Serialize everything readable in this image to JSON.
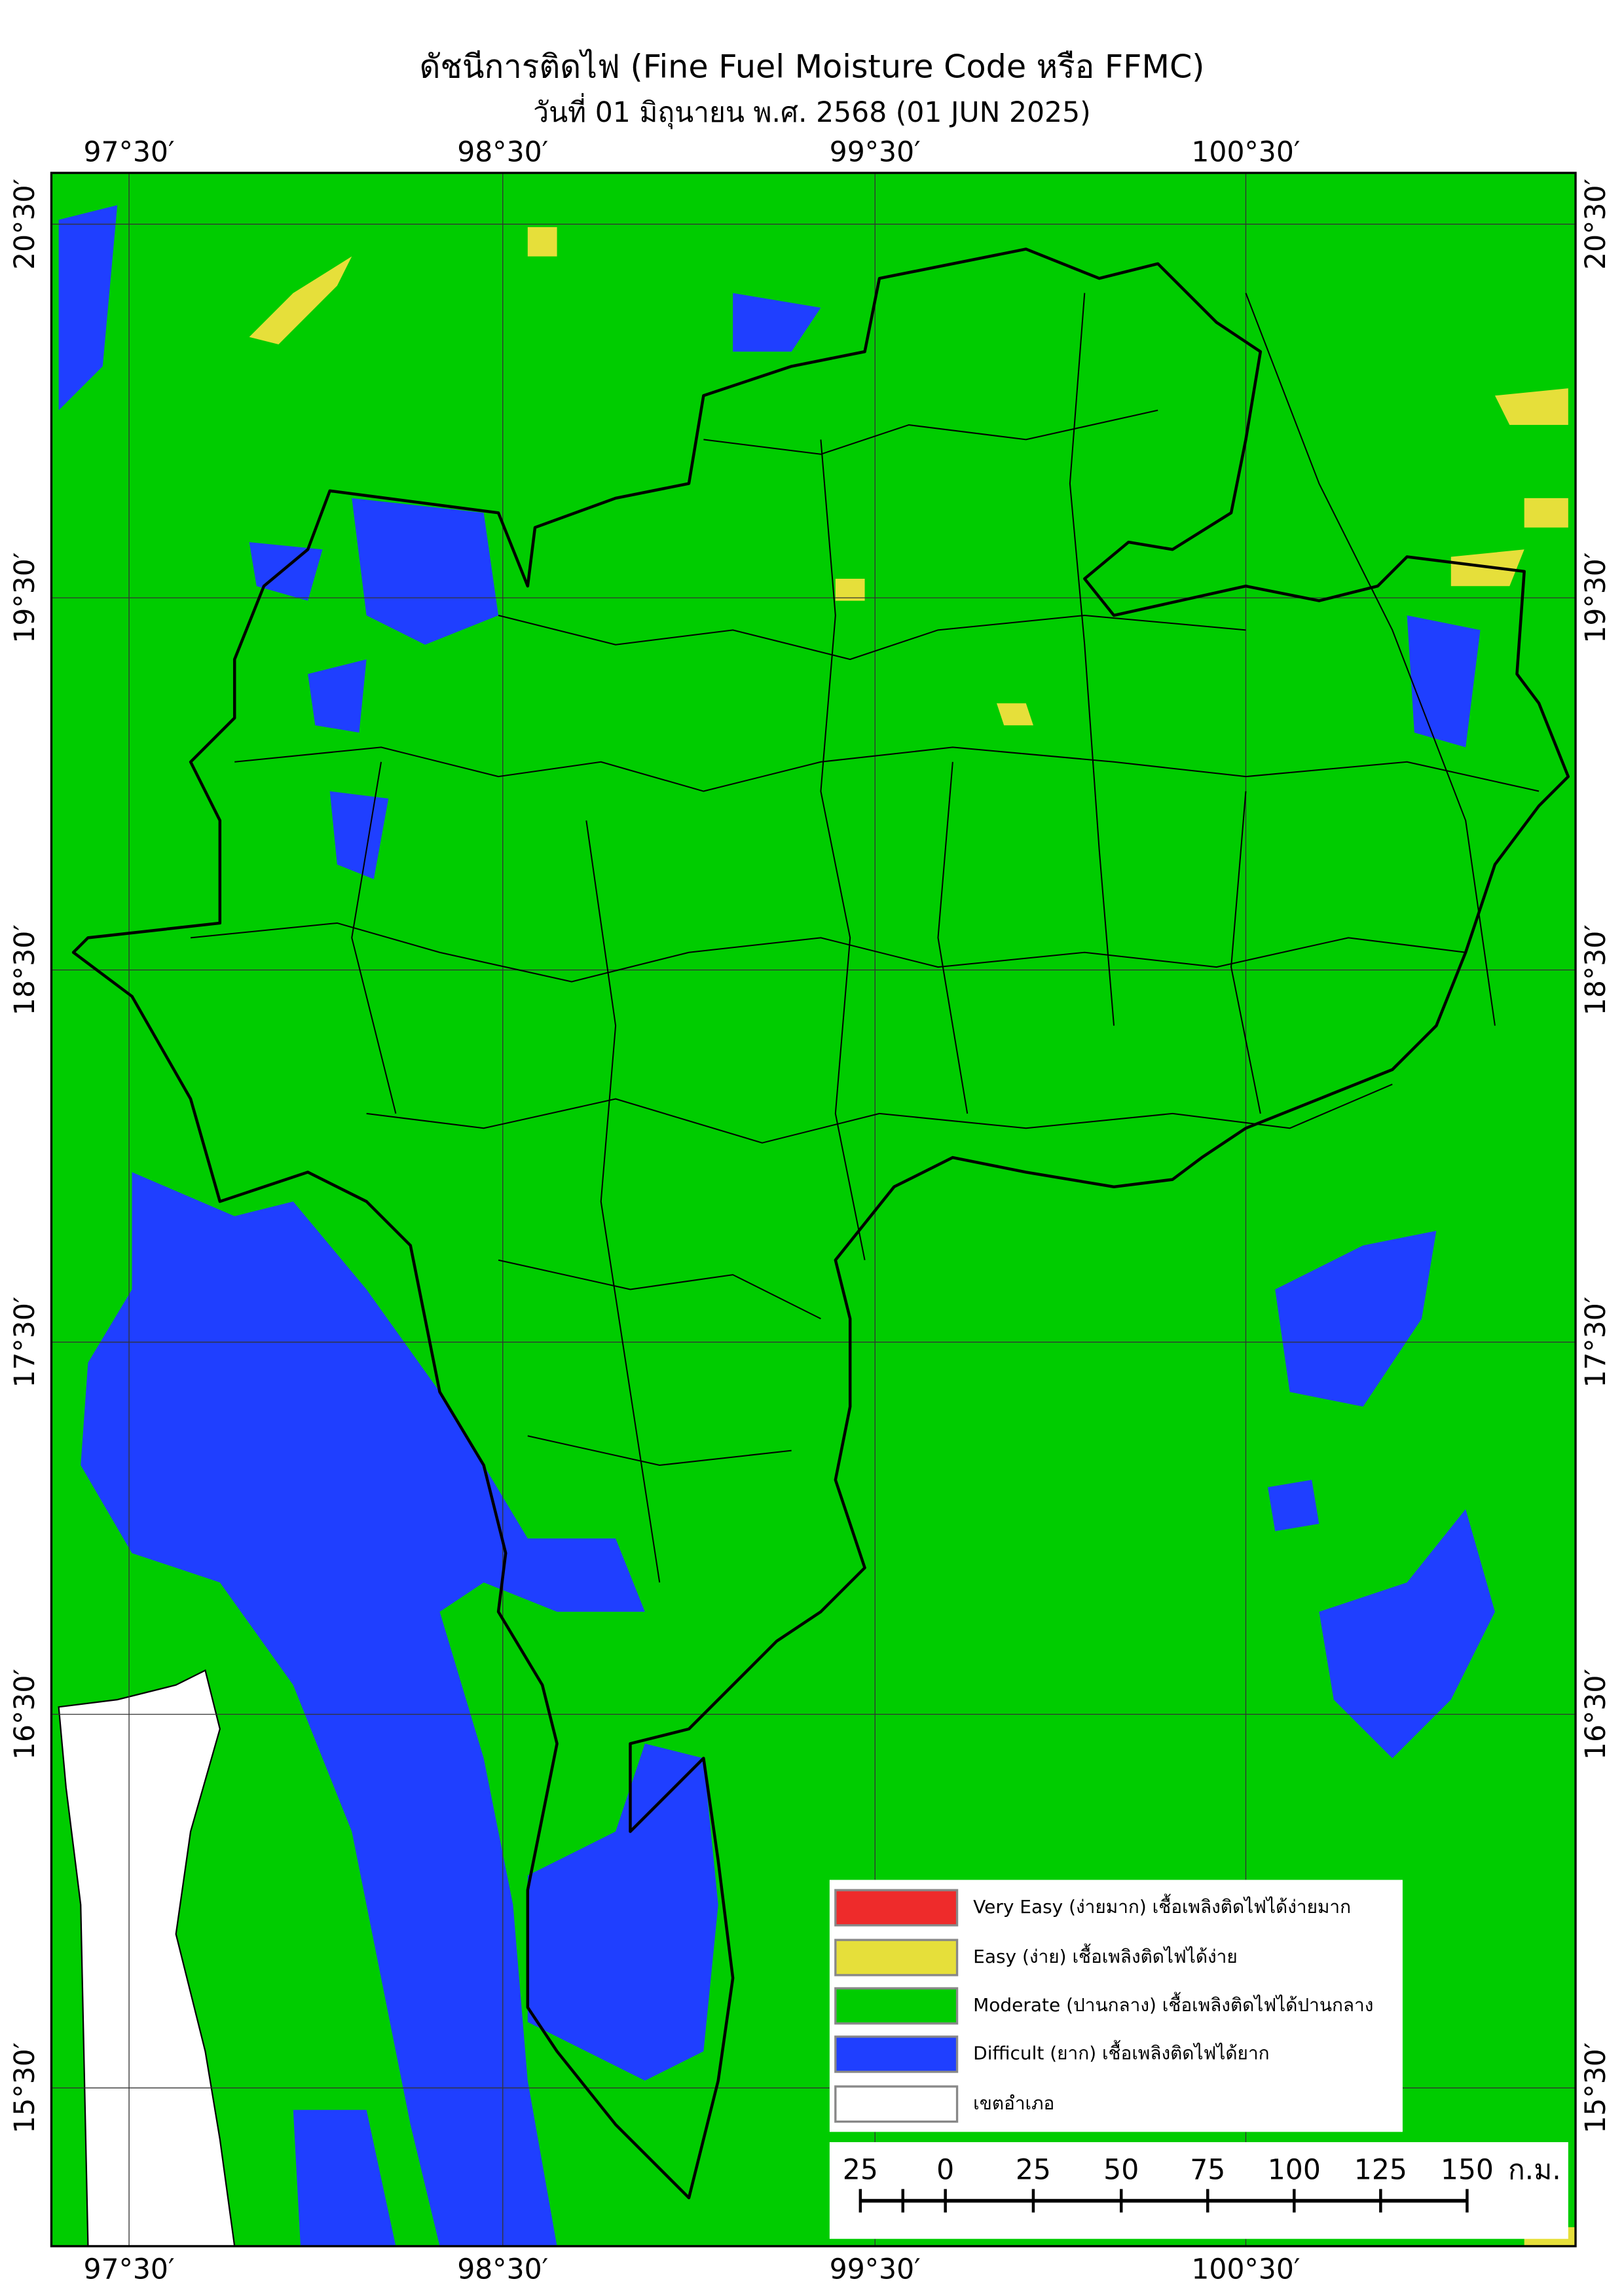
{
  "header": {
    "title": "ดัชนีการติดไฟ (Fine Fuel Moisture Code หรือ FFMC)",
    "subtitle": "วันที่ 01 มิถุนายน พ.ศ. 2568 (01 JUN 2025)"
  },
  "map": {
    "longitude_labels": [
      "97°30′",
      "98°30′",
      "99°30′",
      "100°30′"
    ],
    "latitude_labels": [
      "20°30′",
      "19°30′",
      "18°30′",
      "17°30′",
      "16°30′",
      "15°30′"
    ]
  },
  "legend": {
    "items": [
      {
        "label": "Very Easy (ง่ายมาก) เชื้อเพลิงติดไฟได้ง่ายมาก",
        "color": "#ee2b2b"
      },
      {
        "label": "Easy (ง่าย) เชื้อเพลิงติดไฟได้ง่าย",
        "color": "#e6df3a"
      },
      {
        "label": "Moderate (ปานกลาง) เชื้อเพลิงติดไฟได้ปานกลาง",
        "color": "#00cc00"
      },
      {
        "label": "Difficult (ยาก) เชื้อเพลิงติดไฟได้ยาก",
        "color": "#1f3fff"
      },
      {
        "label": "เขตอำเภอ",
        "color": "#ffffff"
      }
    ]
  },
  "scale_bar": {
    "labels": [
      "25",
      "0",
      "25",
      "50",
      "75",
      "100",
      "125",
      "150"
    ],
    "unit": "ก.ม."
  }
}
